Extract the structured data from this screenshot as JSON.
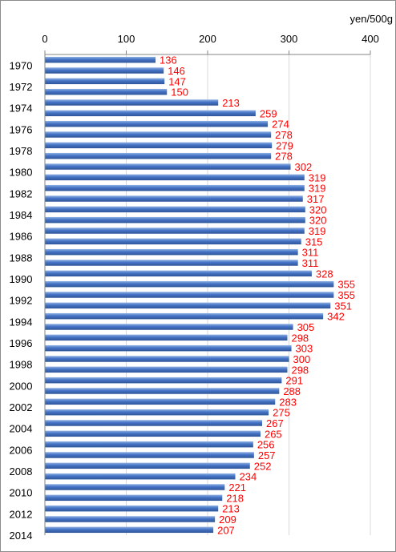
{
  "chart_data": {
    "type": "bar",
    "orientation": "horizontal",
    "unit_label": "yen/500g",
    "xlim": [
      0,
      400
    ],
    "x_ticks": [
      "0",
      "100",
      "200",
      "300",
      "400"
    ],
    "grid": true,
    "bar_color": "#4472c4",
    "label_color": "#ff0000",
    "categories": [
      "1970",
      "1971",
      "1972",
      "1973",
      "1974",
      "1975",
      "1976",
      "1977",
      "1978",
      "1979",
      "1980",
      "1981",
      "1982",
      "1983",
      "1984",
      "1985",
      "1986",
      "1987",
      "1988",
      "1989",
      "1990",
      "1991",
      "1992",
      "1993",
      "1994",
      "1995",
      "1996",
      "1997",
      "1998",
      "1999",
      "2000",
      "2001",
      "2002",
      "2003",
      "2004",
      "2005",
      "2006",
      "2007",
      "2008",
      "2009",
      "2010",
      "2011",
      "2012",
      "2013",
      "2014"
    ],
    "category_labels_shown": [
      "1970",
      "",
      "1972",
      "",
      "1974",
      "",
      "1976",
      "",
      "1978",
      "",
      "1980",
      "",
      "1982",
      "",
      "1984",
      "",
      "1986",
      "",
      "1988",
      "",
      "1990",
      "",
      "1992",
      "",
      "1994",
      "",
      "1996",
      "",
      "1998",
      "",
      "2000",
      "",
      "2002",
      "",
      "2004",
      "",
      "2006",
      "",
      "2008",
      "",
      "2010",
      "",
      "2012",
      "",
      "2014"
    ],
    "values": [
      136,
      146,
      147,
      150,
      213,
      259,
      274,
      278,
      279,
      278,
      302,
      319,
      319,
      317,
      320,
      320,
      319,
      315,
      311,
      311,
      328,
      355,
      355,
      351,
      342,
      305,
      298,
      303,
      300,
      298,
      291,
      288,
      283,
      275,
      267,
      265,
      256,
      257,
      252,
      234,
      221,
      218,
      213,
      209,
      207
    ]
  }
}
